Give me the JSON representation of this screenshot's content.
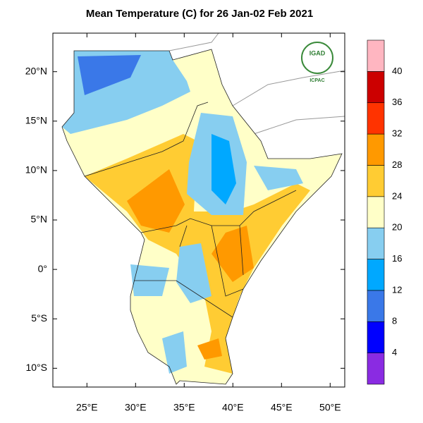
{
  "map": {
    "title": "Mean Temperature (C) for 26 Jan-02 Feb 2021",
    "lon_range": [
      21.5,
      51.5
    ],
    "lat_range": [
      -11.9,
      23.9
    ],
    "lon_ticks": [
      {
        "value": 25,
        "label": "25°E"
      },
      {
        "value": 30,
        "label": "30°E"
      },
      {
        "value": 35,
        "label": "35°E"
      },
      {
        "value": 40,
        "label": "40°E"
      },
      {
        "value": 45,
        "label": "45°E"
      },
      {
        "value": 50,
        "label": "50°E"
      }
    ],
    "lat_ticks": [
      {
        "value": 20,
        "label": "20°N"
      },
      {
        "value": 15,
        "label": "15°N"
      },
      {
        "value": 10,
        "label": "10°N"
      },
      {
        "value": 5,
        "label": "5°N"
      },
      {
        "value": 0,
        "label": "0°"
      },
      {
        "value": -5,
        "label": "5°S"
      },
      {
        "value": -10,
        "label": "10°S"
      }
    ],
    "colorbar": {
      "levels": [
        4,
        8,
        12,
        16,
        20,
        24,
        28,
        32,
        36,
        40
      ],
      "colors": [
        "#8a2be2",
        "#0000ff",
        "#3a78e8",
        "#00a8ff",
        "#87cef0",
        "#ffffc8",
        "#ffcc33",
        "#ff9900",
        "#ff3300",
        "#cc0000",
        "#ffb6c1"
      ]
    },
    "logo": {
      "name": "IGAD",
      "caption": "ICPAC"
    }
  }
}
